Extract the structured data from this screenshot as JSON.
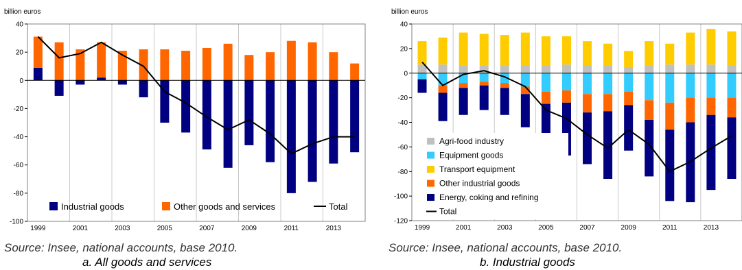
{
  "chart_data": [
    {
      "type": "bar",
      "stacked": true,
      "unit_label": "billion euros",
      "x": [
        1999,
        2000,
        2001,
        2002,
        2003,
        2004,
        2005,
        2006,
        2007,
        2008,
        2009,
        2010,
        2011,
        2012,
        2013,
        2014
      ],
      "x_tick_labels": [
        "1999",
        "2001",
        "2003",
        "2005",
        "2007",
        "2009",
        "2011",
        "2013"
      ],
      "ylim": [
        -100,
        40
      ],
      "y_ticks": [
        40,
        20,
        0,
        -20,
        -40,
        -60,
        -80,
        -100
      ],
      "grid": "vertical",
      "legend_position": "bottom",
      "series": [
        {
          "name": "Industrial goods",
          "kind": "bar",
          "color": "#000080",
          "values": [
            9,
            -11,
            -3,
            2,
            -3,
            -12,
            -30,
            -37,
            -49,
            -62,
            -46,
            -58,
            -80,
            -72,
            -59,
            -51
          ]
        },
        {
          "name": "Other goods and services",
          "kind": "bar",
          "color": "#ff6600",
          "values": [
            22,
            27,
            22,
            25,
            21,
            22,
            22,
            21,
            23,
            26,
            18,
            20,
            28,
            27,
            20,
            12
          ]
        },
        {
          "name": "Total",
          "kind": "line",
          "color": "#000000",
          "values": [
            31,
            16,
            19,
            27,
            18,
            10,
            -8,
            -16,
            -26,
            -35,
            -28,
            -38,
            -52,
            -45,
            -40,
            -40
          ]
        }
      ],
      "source": "Source: Insee, national accounts, base 2010.",
      "caption": "a. All goods and services"
    },
    {
      "type": "bar",
      "stacked": true,
      "unit_label": "billion euros",
      "x": [
        1999,
        2000,
        2001,
        2002,
        2003,
        2004,
        2005,
        2006,
        2007,
        2008,
        2009,
        2010,
        2011,
        2012,
        2013,
        2014
      ],
      "x_tick_labels": [
        "1999",
        "2001",
        "2003",
        "2005",
        "2007",
        "2009",
        "2011",
        "2013"
      ],
      "ylim": [
        -120,
        40
      ],
      "y_ticks": [
        40,
        20,
        0,
        -20,
        -40,
        -60,
        -80,
        -100,
        -120
      ],
      "grid": "vertical",
      "legend_position": "bottom-left",
      "series": [
        {
          "name": "Agri-food industry",
          "kind": "bar",
          "color": "#c0c0c0",
          "sign": "positive",
          "values": [
            7,
            7,
            6,
            6,
            6,
            6,
            6,
            7,
            6,
            6,
            5,
            6,
            7,
            7,
            7,
            6
          ]
        },
        {
          "name": "Equipment goods",
          "kind": "bar",
          "color": "#33ccff",
          "sign": "negative",
          "values": [
            -5,
            -10,
            -8,
            -7,
            -8,
            -11,
            -15,
            -14,
            -17,
            -17,
            -15,
            -22,
            -24,
            -20,
            -20,
            -20
          ]
        },
        {
          "name": "Transport equipment",
          "kind": "bar",
          "color": "#ffcc00",
          "sign": "positive",
          "values": [
            19,
            22,
            27,
            26,
            25,
            27,
            24,
            23,
            20,
            18,
            13,
            20,
            17,
            26,
            29,
            28
          ]
        },
        {
          "name": "Other industrial goods",
          "kind": "bar",
          "color": "#ff6600",
          "sign": "negative",
          "values": [
            0,
            -6,
            -4,
            -3,
            -4,
            -6,
            -10,
            -10,
            -15,
            -14,
            -11,
            -16,
            -22,
            -20,
            -14,
            -16
          ]
        },
        {
          "name": "Energy, coking and refining",
          "kind": "bar",
          "color": "#000080",
          "sign": "negative",
          "values": [
            -11,
            -23,
            -22,
            -20,
            -22,
            -27,
            -35,
            -43,
            -42,
            -55,
            -37,
            -46,
            -58,
            -65,
            -61,
            -50
          ]
        },
        {
          "name": "Total",
          "kind": "line",
          "color": "#000000",
          "values": [
            9,
            -10,
            -1,
            2,
            -3,
            -11,
            -30,
            -37,
            -50,
            -61,
            -46,
            -58,
            -80,
            -72,
            -61,
            -51
          ]
        }
      ],
      "source": "Source: Insee, national accounts, base 2010.",
      "caption": "b. Industrial goods"
    }
  ]
}
